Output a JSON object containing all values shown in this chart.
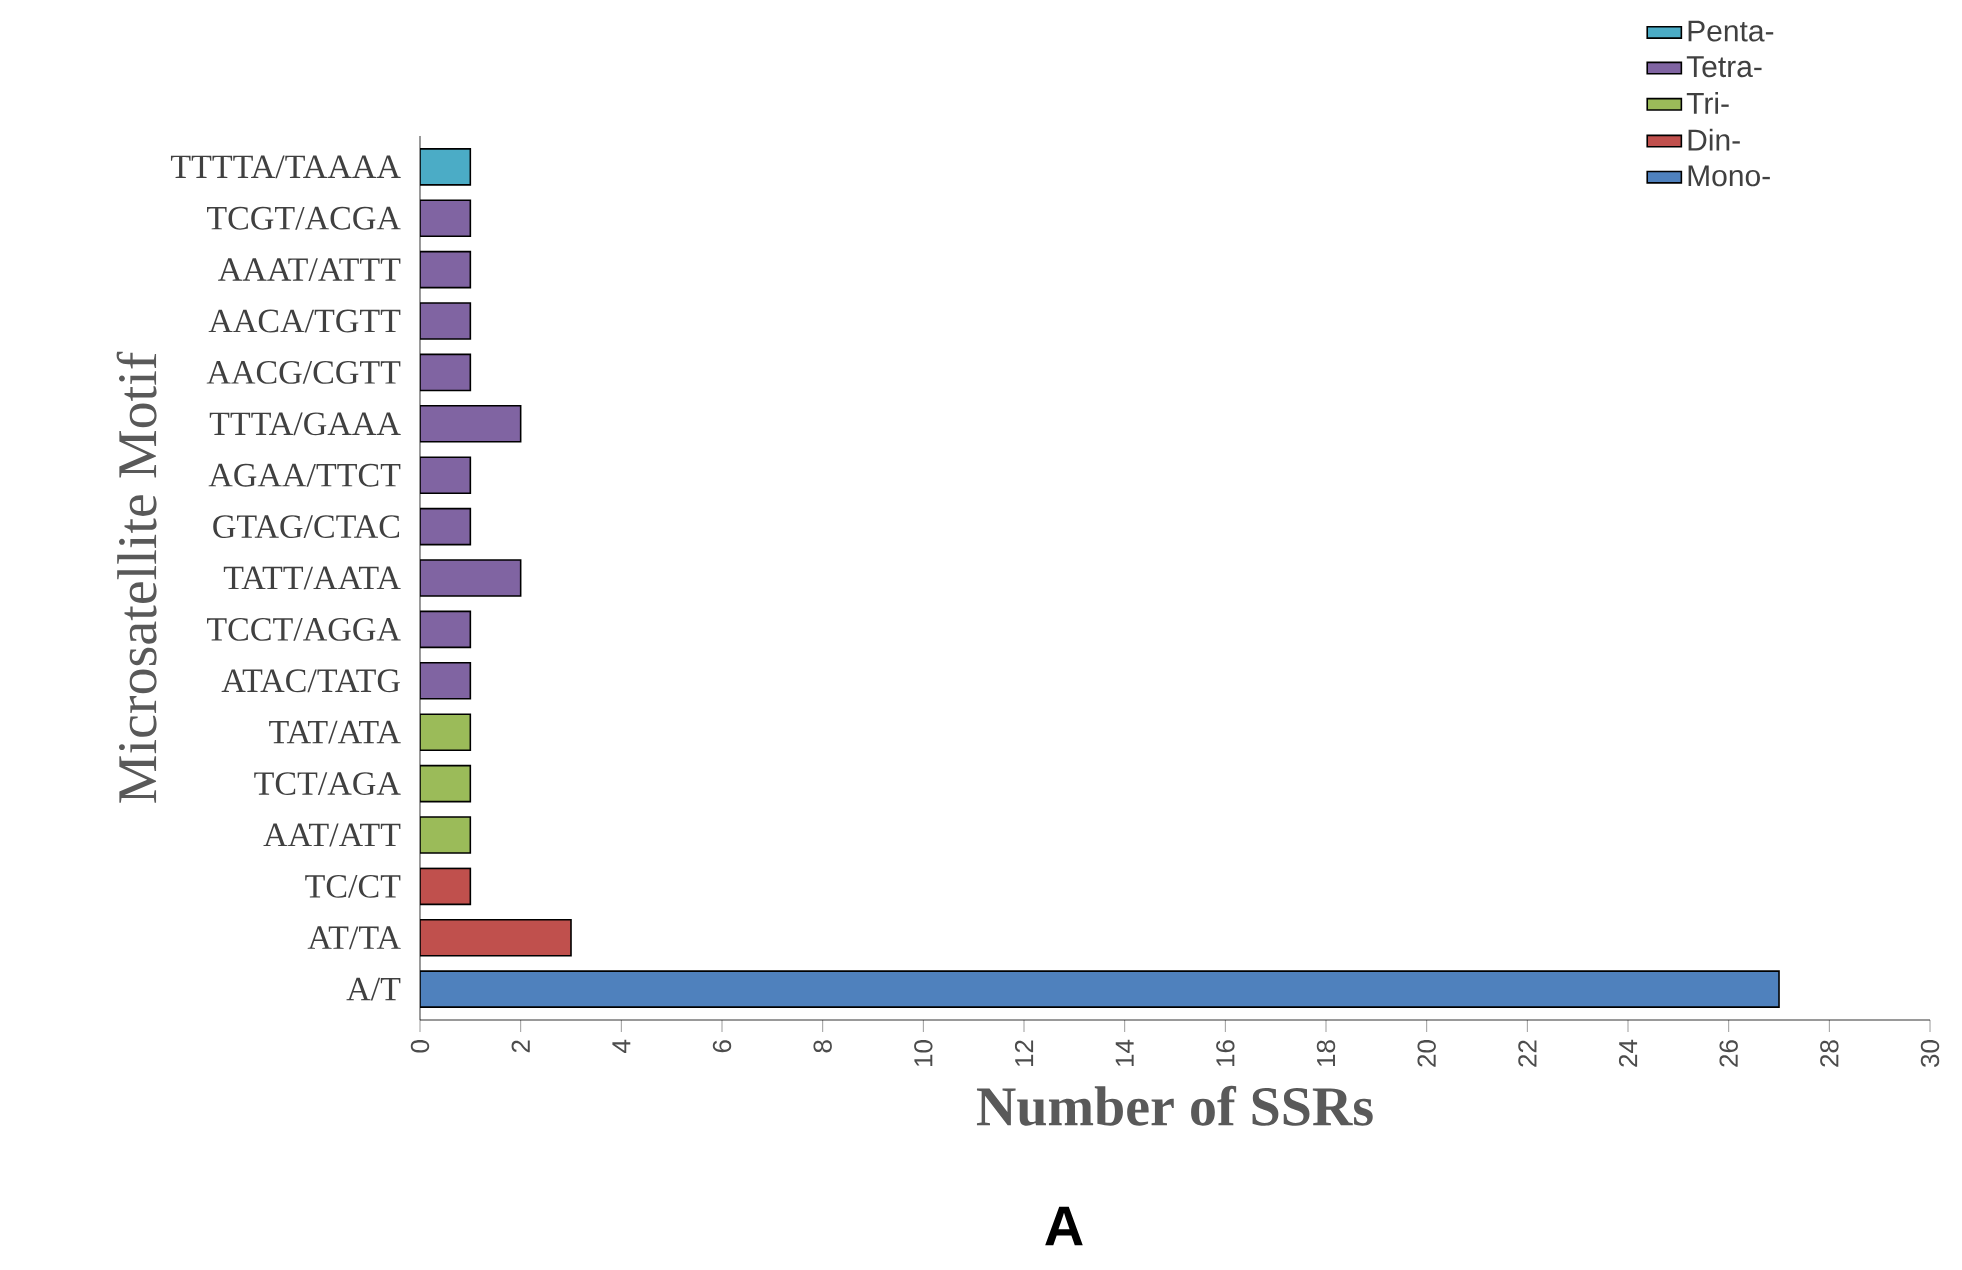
{
  "chart_data": {
    "type": "bar",
    "orientation": "horizontal",
    "categories": [
      "TTTTA/TAAAA",
      "TCGT/ACGA",
      "AAAT/ATTT",
      "AACA/TGTT",
      "AACG/CGTT",
      "TTTA/GAAA",
      "AGAA/TTCT",
      "GTAG/CTAC",
      "TATT/AATA",
      "TCCT/AGGA",
      "ATAC/TATG",
      "TAT/ATA",
      "TCT/AGA",
      "AAT/ATT",
      "TC/CT",
      "AT/TA",
      "A/T"
    ],
    "series": [
      {
        "name": "Penta-",
        "color": "#4bacc6",
        "values": [
          1,
          null,
          null,
          null,
          null,
          null,
          null,
          null,
          null,
          null,
          null,
          null,
          null,
          null,
          null,
          null,
          null
        ]
      },
      {
        "name": "Tetra-",
        "color": "#8064a2",
        "values": [
          null,
          1,
          1,
          1,
          1,
          2,
          1,
          1,
          2,
          1,
          1,
          null,
          null,
          null,
          null,
          null,
          null
        ]
      },
      {
        "name": "Tri-",
        "color": "#9bbb59",
        "values": [
          null,
          null,
          null,
          null,
          null,
          null,
          null,
          null,
          null,
          null,
          null,
          1,
          1,
          1,
          null,
          null,
          null
        ]
      },
      {
        "name": "Din-",
        "color": "#c0504d",
        "values": [
          null,
          null,
          null,
          null,
          null,
          null,
          null,
          null,
          null,
          null,
          null,
          null,
          null,
          null,
          1,
          3,
          null
        ]
      },
      {
        "name": "Mono-",
        "color": "#4f81bd",
        "values": [
          null,
          null,
          null,
          null,
          null,
          null,
          null,
          null,
          null,
          null,
          null,
          null,
          null,
          null,
          null,
          null,
          27
        ]
      }
    ],
    "xlim": [
      0,
      30
    ],
    "xticks": [
      0,
      2,
      4,
      6,
      8,
      10,
      12,
      14,
      16,
      18,
      20,
      22,
      24,
      26,
      28,
      30
    ],
    "xlabel": "Number of SSRs",
    "ylabel": "Microsatellite Motif",
    "legend": "top right",
    "grid": false,
    "annotations": [
      "A"
    ]
  }
}
